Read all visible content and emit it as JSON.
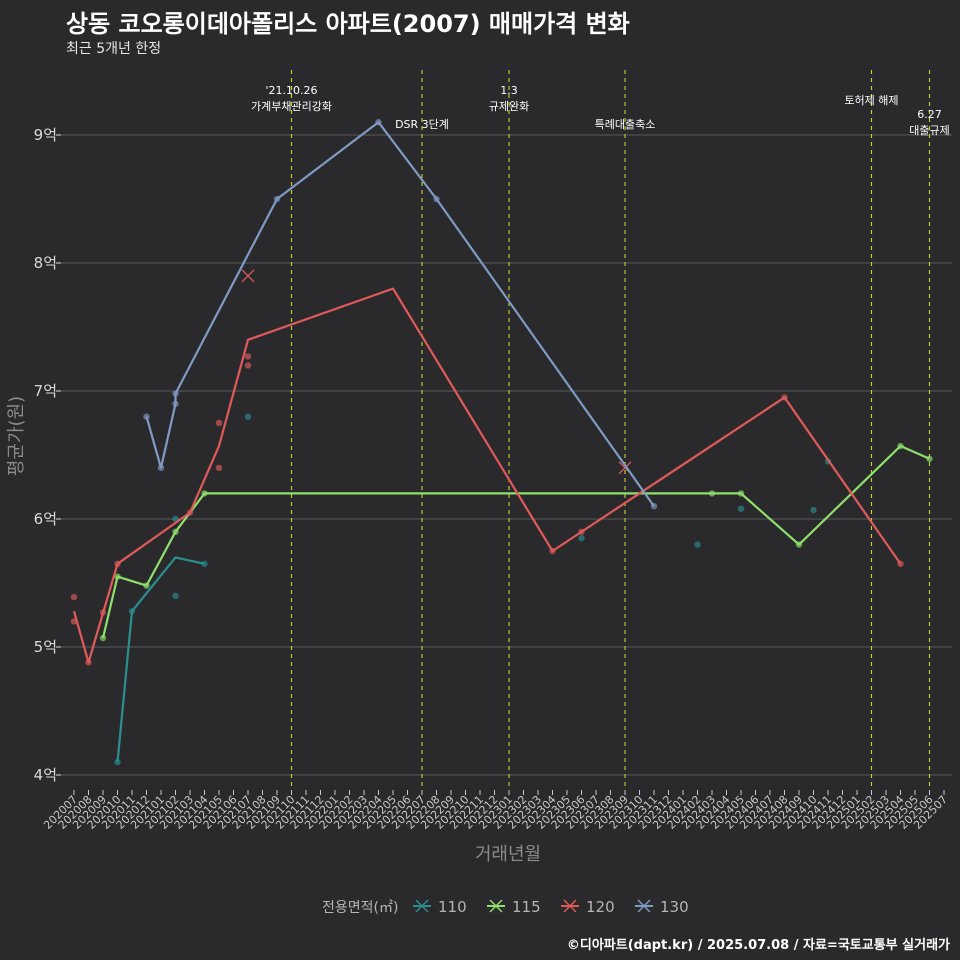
{
  "header": {
    "title": "상동 코오롱이데아폴리스 아파트(2007) 매매가격 변화",
    "subtitle": "최근 5개년 한정"
  },
  "footer": "©디아파트(dapt.kr) / 2025.07.08 / 자료=국토교통부 실거래가",
  "chart_data": {
    "type": "line",
    "xlabel": "거래년월",
    "ylabel": "평균가(원)",
    "categories": [
      "202007",
      "202008",
      "202009",
      "202010",
      "202011",
      "202012",
      "202101",
      "202102",
      "202103",
      "202104",
      "202105",
      "202106",
      "202107",
      "202108",
      "202109",
      "202110",
      "202111",
      "202112",
      "202201",
      "202202",
      "202203",
      "202204",
      "202205",
      "202206",
      "202207",
      "202208",
      "202209",
      "202210",
      "202211",
      "202212",
      "202301",
      "202302",
      "202303",
      "202304",
      "202305",
      "202306",
      "202307",
      "202308",
      "202309",
      "202310",
      "202311",
      "202312",
      "202401",
      "202402",
      "202403",
      "202404",
      "202405",
      "202406",
      "202407",
      "202408",
      "202409",
      "202410",
      "202411",
      "202412",
      "202501",
      "202502",
      "202503",
      "202504",
      "202505",
      "202506",
      "202507"
    ],
    "ylim": [
      3.9,
      9.5
    ],
    "yticks": [
      {
        "v": 4,
        "label": "4억"
      },
      {
        "v": 5,
        "label": "5억"
      },
      {
        "v": 6,
        "label": "6억"
      },
      {
        "v": 7,
        "label": "7억"
      },
      {
        "v": 8,
        "label": "8억"
      },
      {
        "v": 9,
        "label": "9억"
      }
    ],
    "grid": true,
    "legend": {
      "title": "전용면적(㎡)",
      "position": "bottom"
    },
    "series": [
      {
        "name": "110",
        "color": "#2a8f8f",
        "line": [
          [
            "202010",
            4.1
          ],
          [
            "202011",
            5.28
          ],
          [
            "202102",
            5.7
          ],
          [
            "202104",
            5.65
          ]
        ],
        "points": [
          [
            "202010",
            4.1
          ],
          [
            "202011",
            5.28
          ],
          [
            "202102",
            5.4
          ],
          [
            "202102",
            6.0
          ],
          [
            "202104",
            5.65
          ],
          [
            "202107",
            6.8
          ],
          [
            "202306",
            5.85
          ],
          [
            "202402",
            5.8
          ],
          [
            "202405",
            6.08
          ],
          [
            "202410",
            6.07
          ],
          [
            "202411",
            6.45
          ]
        ]
      },
      {
        "name": "115",
        "color": "#8ee06b",
        "line": [
          [
            "202009",
            5.07
          ],
          [
            "202010",
            5.55
          ],
          [
            "202012",
            5.48
          ],
          [
            "202102",
            5.9
          ],
          [
            "202104",
            6.2
          ],
          [
            "202405",
            6.2
          ],
          [
            "202409",
            5.8
          ],
          [
            "202504",
            6.57
          ],
          [
            "202506",
            6.47
          ]
        ],
        "points": [
          [
            "202009",
            5.07
          ],
          [
            "202010",
            5.55
          ],
          [
            "202012",
            5.48
          ],
          [
            "202102",
            5.9
          ],
          [
            "202104",
            6.2
          ],
          [
            "202403",
            6.2
          ],
          [
            "202405",
            6.2
          ],
          [
            "202409",
            5.8
          ],
          [
            "202504",
            6.57
          ],
          [
            "202506",
            6.47
          ]
        ]
      },
      {
        "name": "120",
        "color": "#e05a5a",
        "line": [
          [
            "202007",
            5.28
          ],
          [
            "202008",
            4.88
          ],
          [
            "202010",
            5.65
          ],
          [
            "202103",
            6.05
          ],
          [
            "202105",
            6.57
          ],
          [
            "202107",
            7.4
          ],
          [
            "202205",
            7.8
          ],
          [
            "202304",
            5.75
          ],
          [
            "202408",
            6.95
          ],
          [
            "202504",
            5.65
          ]
        ],
        "points": [
          [
            "202007",
            5.39
          ],
          [
            "202007",
            5.2
          ],
          [
            "202008",
            4.88
          ],
          [
            "202009",
            5.27
          ],
          [
            "202010",
            5.65
          ],
          [
            "202103",
            6.05
          ],
          [
            "202105",
            6.75
          ],
          [
            "202105",
            6.4
          ],
          [
            "202107",
            7.27
          ],
          [
            "202107",
            7.2
          ],
          [
            "202304",
            5.75
          ],
          [
            "202306",
            5.9
          ],
          [
            "202408",
            6.95
          ],
          [
            "202504",
            5.65
          ]
        ],
        "cancelled": [
          [
            "202107",
            7.9
          ],
          [
            "202309",
            6.4
          ]
        ]
      },
      {
        "name": "130",
        "color": "#7f9bc4",
        "line": [
          [
            "202012",
            6.8
          ],
          [
            "202101",
            6.4
          ],
          [
            "202102",
            6.9
          ],
          [
            "202102",
            6.98
          ],
          [
            "202109",
            8.5
          ],
          [
            "202204",
            9.1
          ],
          [
            "202208",
            8.5
          ],
          [
            "202311",
            6.1
          ]
        ],
        "points": [
          [
            "202012",
            6.8
          ],
          [
            "202101",
            6.4
          ],
          [
            "202102",
            6.9
          ],
          [
            "202102",
            6.98
          ],
          [
            "202109",
            8.5
          ],
          [
            "202204",
            9.1
          ],
          [
            "202208",
            8.5
          ],
          [
            "202311",
            6.1
          ]
        ]
      }
    ],
    "vlines": [
      {
        "x": "202110",
        "color": "#c8d23a",
        "label": [
          "'21.10.26",
          "가계부채관리강화"
        ],
        "align": "center",
        "pos": "top"
      },
      {
        "x": "202207",
        "color": "#c8d23a",
        "label": [
          "DSR 3단계"
        ],
        "align": "center",
        "pos": "upper"
      },
      {
        "x": "202301",
        "color": "#c8d23a",
        "label": [
          "1.3",
          "규제완화"
        ],
        "align": "center",
        "pos": "top"
      },
      {
        "x": "202309",
        "color": "#c8d23a",
        "label": [
          "특례대출축소"
        ],
        "align": "center",
        "pos": "upper"
      },
      {
        "x": "202502",
        "color": "#c8d23a",
        "label": [
          "토허제 해제"
        ],
        "align": "center",
        "pos": "mid"
      },
      {
        "x": "202506",
        "color": "#c8d23a",
        "label": [
          "6.27",
          "대출규제"
        ],
        "align": "center",
        "pos": "low"
      }
    ]
  }
}
